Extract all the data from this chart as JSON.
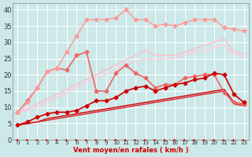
{
  "x": [
    0,
    1,
    2,
    3,
    4,
    5,
    6,
    7,
    8,
    9,
    10,
    11,
    12,
    13,
    14,
    15,
    16,
    17,
    18,
    19,
    20,
    21,
    22,
    23
  ],
  "lines": [
    {
      "y": [
        4.5,
        5.5,
        7,
        8,
        8.5,
        8.5,
        9,
        10.5,
        12,
        12,
        13,
        15,
        16,
        16.5,
        15,
        16,
        17,
        17.5,
        18.5,
        19,
        20.5,
        20,
        14,
        11.5
      ],
      "color": "#cc0000",
      "lw": 1.2,
      "marker": "D",
      "ms": 2.5,
      "zorder": 5
    },
    {
      "y": [
        4.5,
        5,
        5.5,
        6.5,
        7,
        7.5,
        8,
        8.5,
        9,
        9.5,
        10,
        10.5,
        11,
        11.5,
        12,
        12.5,
        13,
        13.5,
        14,
        14.5,
        15,
        15.5,
        11.5,
        11
      ],
      "color": "#cc0000",
      "lw": 1.0,
      "marker": null,
      "ms": 0,
      "zorder": 3
    },
    {
      "y": [
        4.5,
        5,
        5.5,
        6,
        6.5,
        7,
        7.5,
        8,
        8.5,
        9,
        9.5,
        10,
        10.5,
        11,
        11.5,
        12,
        12.5,
        13,
        13.5,
        14,
        14.5,
        15,
        11,
        10.5
      ],
      "color": "#dd2222",
      "lw": 1.0,
      "marker": null,
      "ms": 0,
      "zorder": 3
    },
    {
      "y": [
        8.5,
        12,
        16,
        21,
        22,
        21.5,
        26,
        27,
        15,
        15,
        20.5,
        23,
        20.5,
        19,
        16,
        17,
        17,
        19,
        19.5,
        20,
        20,
        14.5,
        11.5,
        11
      ],
      "color": "#ee6666",
      "lw": 1.2,
      "marker": "D",
      "ms": 2.5,
      "zorder": 4
    },
    {
      "y": [
        8.5,
        11.5,
        16,
        21,
        22,
        27,
        32,
        37,
        37,
        37,
        37.5,
        40,
        37,
        37,
        35,
        35.5,
        35,
        36,
        37,
        37,
        37,
        34.5,
        34,
        33.5
      ],
      "color": "#ff9999",
      "lw": 1.0,
      "marker": "D",
      "ms": 2.5,
      "zorder": 4
    },
    {
      "y": [
        8.5,
        9.5,
        11,
        12.5,
        14,
        15.5,
        17,
        18.5,
        20,
        21.5,
        23,
        24.5,
        26,
        27.5,
        26,
        26,
        26,
        27,
        28,
        29,
        30,
        31,
        27,
        26.5
      ],
      "color": "#ffbbcc",
      "lw": 1.0,
      "marker": null,
      "ms": 0,
      "zorder": 2
    },
    {
      "y": [
        8.5,
        9,
        10,
        11.5,
        13,
        14.5,
        16,
        17.5,
        19,
        20,
        21.5,
        23,
        24,
        25,
        24.5,
        25,
        25,
        26,
        27,
        27.5,
        28.5,
        29,
        26.5,
        25.5
      ],
      "color": "#ffccdd",
      "lw": 1.0,
      "marker": null,
      "ms": 0,
      "zorder": 2
    }
  ],
  "xlabel": "Vent moyen/en rafales ( km/h )",
  "ylabel": "",
  "xlim": [
    -0.5,
    23.5
  ],
  "ylim": [
    0,
    42
  ],
  "yticks": [
    0,
    5,
    10,
    15,
    20,
    25,
    30,
    35,
    40
  ],
  "xticks": [
    0,
    1,
    2,
    3,
    4,
    5,
    6,
    7,
    8,
    9,
    10,
    11,
    12,
    13,
    14,
    15,
    16,
    17,
    18,
    19,
    20,
    21,
    22,
    23
  ],
  "bg_color": "#cce8e8",
  "grid_color": "#ffffff",
  "arrow_color": "#cc0000",
  "xlabel_color": "#cc0000"
}
